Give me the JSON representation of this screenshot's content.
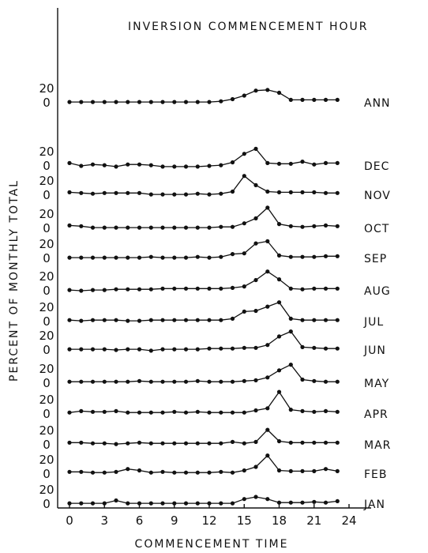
{
  "chart_data": {
    "type": "line",
    "title": "INVERSION COMMENCEMENT HOUR",
    "xlabel": "COMMENCEMENT TIME",
    "ylabel": "PERCENT OF MONTHLY TOTAL",
    "x": [
      0,
      1,
      2,
      3,
      4,
      5,
      6,
      7,
      8,
      9,
      10,
      11,
      12,
      13,
      14,
      15,
      16,
      17,
      18,
      19,
      20,
      21,
      22,
      23
    ],
    "xticks": [
      "0",
      "3",
      "6",
      "9",
      "12",
      "15",
      "18",
      "21",
      "24"
    ],
    "xlim": [
      0,
      24
    ],
    "panel_yticks": [
      "0",
      "20"
    ],
    "series": [
      {
        "name": "ANN",
        "values": [
          1,
          1,
          1,
          1,
          1,
          1,
          1,
          1,
          1,
          1,
          1,
          1,
          1,
          2,
          5,
          10,
          17,
          18,
          14,
          4,
          4,
          4,
          4,
          4
        ]
      },
      {
        "name": "DEC",
        "values": [
          4,
          0,
          2,
          1,
          -1,
          2,
          2,
          1,
          -1,
          -1,
          -1,
          -1,
          0,
          1,
          5,
          17,
          24,
          4,
          3,
          3,
          6,
          2,
          4,
          4
        ]
      },
      {
        "name": "NOV",
        "values": [
          4,
          3,
          2,
          3,
          3,
          3,
          3,
          1,
          1,
          1,
          1,
          2,
          1,
          2,
          5,
          27,
          14,
          5,
          4,
          4,
          4,
          4,
          3,
          3
        ]
      },
      {
        "name": "OCT",
        "values": [
          4,
          3,
          1,
          1,
          1,
          1,
          1,
          1,
          1,
          1,
          1,
          1,
          1,
          2,
          2,
          7,
          14,
          29,
          6,
          3,
          2,
          3,
          4,
          3
        ]
      },
      {
        "name": "SEP",
        "values": [
          1,
          1,
          1,
          1,
          1,
          1,
          1,
          2,
          1,
          1,
          1,
          2,
          1,
          2,
          6,
          7,
          21,
          24,
          4,
          2,
          2,
          2,
          3,
          3
        ]
      },
      {
        "name": "AUG",
        "values": [
          1,
          0,
          1,
          1,
          2,
          2,
          2,
          2,
          3,
          3,
          3,
          3,
          3,
          3,
          4,
          6,
          15,
          27,
          16,
          3,
          2,
          3,
          3,
          3
        ]
      },
      {
        "name": "JUL",
        "values": [
          2,
          1,
          2,
          2,
          2,
          1,
          1,
          2,
          2,
          2,
          2,
          2,
          2,
          2,
          4,
          14,
          15,
          21,
          27,
          4,
          2,
          2,
          2,
          2
        ]
      },
      {
        "name": "JUN",
        "values": [
          1,
          1,
          1,
          1,
          0,
          1,
          1,
          -1,
          1,
          1,
          1,
          1,
          2,
          2,
          2,
          3,
          3,
          7,
          19,
          26,
          4,
          3,
          2,
          2
        ]
      },
      {
        "name": "MAY",
        "values": [
          2,
          2,
          2,
          2,
          2,
          2,
          3,
          2,
          2,
          2,
          2,
          3,
          2,
          2,
          2,
          3,
          4,
          8,
          18,
          26,
          5,
          3,
          2,
          2
        ]
      },
      {
        "name": "APR",
        "values": [
          2,
          4,
          3,
          3,
          4,
          2,
          2,
          2,
          2,
          3,
          2,
          3,
          2,
          2,
          2,
          2,
          5,
          8,
          31,
          6,
          4,
          3,
          4,
          3
        ]
      },
      {
        "name": "MAR",
        "values": [
          3,
          3,
          2,
          2,
          1,
          2,
          3,
          2,
          2,
          2,
          2,
          2,
          2,
          2,
          4,
          2,
          4,
          21,
          5,
          3,
          3,
          3,
          3,
          3
        ]
      },
      {
        "name": "FEB",
        "values": [
          3,
          3,
          2,
          2,
          3,
          7,
          5,
          2,
          3,
          2,
          2,
          2,
          2,
          3,
          2,
          5,
          10,
          26,
          5,
          4,
          4,
          4,
          7,
          4
        ]
      },
      {
        "name": "JAN",
        "values": [
          1,
          1,
          1,
          1,
          5,
          1,
          1,
          1,
          1,
          1,
          1,
          1,
          1,
          1,
          1,
          7,
          10,
          7,
          2,
          2,
          2,
          3,
          2,
          4
        ]
      }
    ]
  }
}
